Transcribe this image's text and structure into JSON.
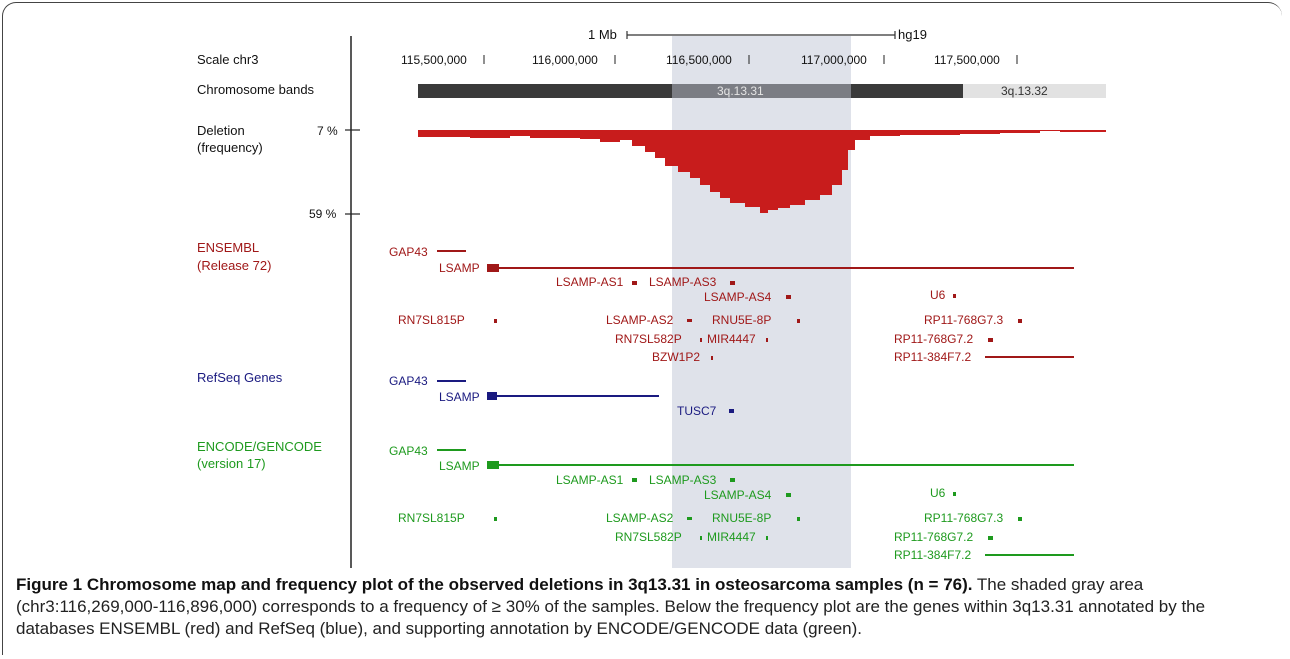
{
  "scale": {
    "bar_label": "1 Mb",
    "assembly": "hg19"
  },
  "tracks": {
    "scale_label": "Scale chr3",
    "bands_label": "Chromosome bands",
    "deletion_label_1": "Deletion",
    "deletion_label_2": "(frequency)",
    "ensembl_label_1": "ENSEMBL",
    "ensembl_label_2": "(Release 72)",
    "refseq_label": "RefSeq Genes",
    "gencode_label_1": "ENCODE/GENCODE",
    "gencode_label_2": "(version 17)"
  },
  "axis": {
    "ticks": [
      "115,500,000",
      "116,000,000",
      "116,500,000",
      "117,000,000",
      "117,500,000"
    ],
    "freq_top": "7 %",
    "freq_bottom": "59 %"
  },
  "bands": {
    "band1": "3q.13.31",
    "band2": "3q.13.32"
  },
  "genes": {
    "ensembl": [
      "GAP43",
      "LSAMP",
      "LSAMP-AS1",
      "LSAMP-AS3",
      "LSAMP-AS4",
      "U6",
      "RN7SL815P",
      "LSAMP-AS2",
      "RNU5E-8P",
      "RP11-768G7.3",
      "RN7SL582P",
      "MIR4447",
      "RP11-768G7.2",
      "BZW1P2",
      "RP11-384F7.2"
    ],
    "refseq": [
      "GAP43",
      "LSAMP",
      "TUSC7"
    ],
    "gencode": [
      "GAP43",
      "LSAMP",
      "LSAMP-AS1",
      "LSAMP-AS3",
      "LSAMP-AS4",
      "U6",
      "RN7SL815P",
      "LSAMP-AS2",
      "RNU5E-8P",
      "RP11-768G7.3",
      "RN7SL582P",
      "MIR4447",
      "RP11-768G7.2",
      "RP11-384F7.2"
    ]
  },
  "colors": {
    "ensembl": "#a01818",
    "refseq": "#1a1a80",
    "gencode": "#1e9a1e",
    "deletion": "#c81c1c",
    "shade": "#c9cfdc"
  },
  "caption": {
    "title": "Figure 1 Chromosome map and frequency plot of the observed deletions in 3q13.31 in osteosarcoma samples (n = 76).",
    "body": " The shaded gray area (chr3:116,269,000-116,896,000) corresponds to a frequency of ≥ 30% of the samples. Below the frequency plot are the genes within 3q13.31 annotated by the databases ENSEMBL (red) and RefSeq (blue), and supporting annotation by ENCODE/GENCODE data (green)."
  }
}
